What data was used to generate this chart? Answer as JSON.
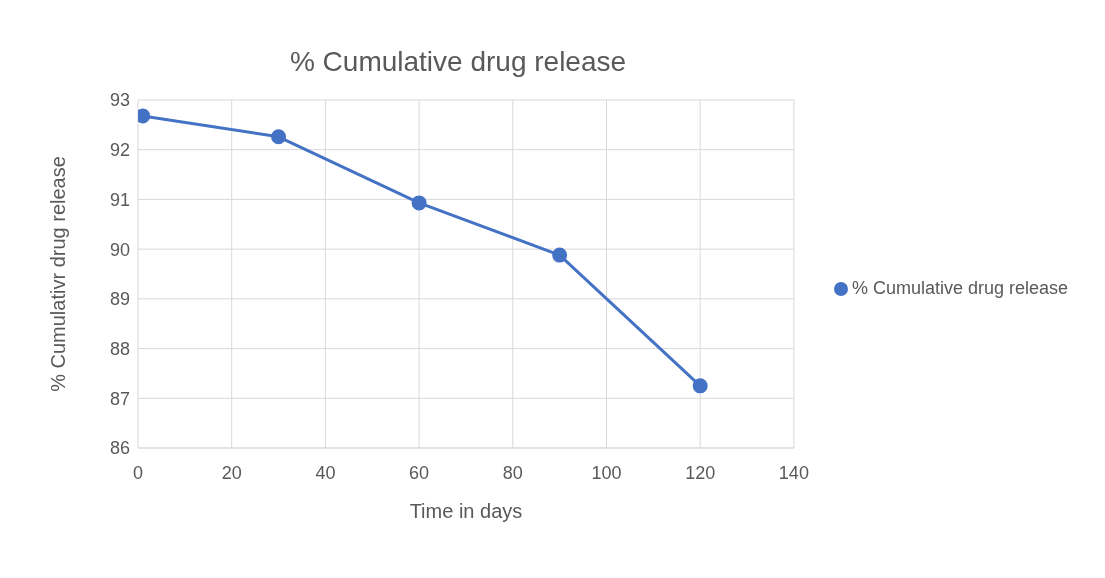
{
  "chart_data": {
    "type": "line",
    "title": "% Cumulative drug release",
    "xlabel": "Time in days",
    "ylabel": "% Cumulativr drug release",
    "x": [
      1,
      30,
      60,
      90,
      120
    ],
    "series": [
      {
        "name": "% Cumulative drug release",
        "color": "#4472c4",
        "values": [
          92.68,
          92.26,
          90.93,
          89.88,
          87.25
        ]
      }
    ],
    "xlim": [
      0,
      140
    ],
    "xticks": [
      0,
      20,
      40,
      60,
      80,
      100,
      120,
      140
    ],
    "ylim": [
      86,
      93
    ],
    "yticks": [
      86,
      87,
      88,
      89,
      90,
      91,
      92,
      93
    ],
    "grid": true,
    "legend": "right",
    "marker": "circle",
    "line_style": "solid"
  }
}
